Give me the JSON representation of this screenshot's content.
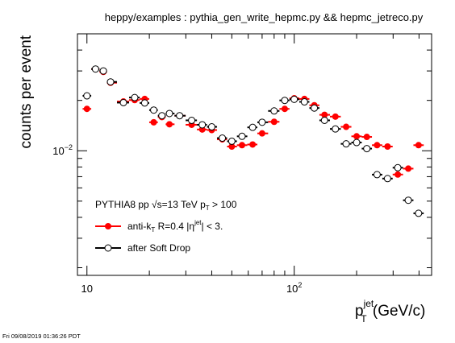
{
  "chart_data": {
    "type": "scatter",
    "title": "heppy/examples : pythia_gen_write_hepmc.py && hepmc_jetreco.py",
    "ylabel": "counts per event",
    "xlabel_main": "p",
    "xlabel_sup": "jet",
    "xlabel_sub": "T",
    "xlabel_units": " (GeV/c)",
    "xscale": "log",
    "yscale": "log",
    "xlim": [
      9,
      460
    ],
    "ylim": [
      0.0018,
      0.05
    ],
    "x_ticks": [
      {
        "value": 10,
        "base": "10",
        "exp": ""
      },
      {
        "value": 100,
        "base": "10",
        "exp": "2"
      }
    ],
    "y_ticks": [
      {
        "value": 0.01,
        "base": "10",
        "exp": "−2"
      }
    ],
    "grid": false,
    "legend": {
      "placement": "bottom-left",
      "header_pre": "PYTHIA8 pp √s=13 TeV ",
      "header_mid": "p",
      "header_sub": "T",
      "header_post": " > 100",
      "entry1_pre": "anti-k",
      "entry1_sub": "T",
      "entry1_mid": " R=0.4 |η",
      "entry1_sup": "jet",
      "entry1_post": "| < 3.",
      "entry2": "after Soft Drop"
    },
    "series": [
      {
        "style": "filled",
        "color": "#ff0000",
        "points": [
          [
            10,
            0.0178
          ],
          [
            11,
            0.0308
          ],
          [
            12,
            0.0296
          ],
          [
            13,
            0.0255
          ],
          [
            15,
            0.0197
          ],
          [
            17,
            0.0201
          ],
          [
            19,
            0.0204
          ],
          [
            21,
            0.0148
          ],
          [
            23,
            0.0159
          ],
          [
            25,
            0.0144
          ],
          [
            28,
            0.0162
          ],
          [
            32,
            0.0143
          ],
          [
            36,
            0.0134
          ],
          [
            40,
            0.0133
          ],
          [
            45,
            0.0117
          ],
          [
            50,
            0.0106
          ],
          [
            56,
            0.0108
          ],
          [
            63,
            0.0109
          ],
          [
            70,
            0.0127
          ],
          [
            80,
            0.0149
          ],
          [
            90,
            0.0178
          ],
          [
            100,
            0.0206
          ],
          [
            112,
            0.0204
          ],
          [
            125,
            0.0187
          ],
          [
            140,
            0.0164
          ],
          [
            158,
            0.016
          ],
          [
            178,
            0.0139
          ],
          [
            200,
            0.0122
          ],
          [
            224,
            0.0121
          ],
          [
            251,
            0.0108
          ],
          [
            282,
            0.0106
          ],
          [
            316,
            0.00721
          ],
          [
            355,
            0.00782
          ],
          [
            398,
            0.0108
          ]
        ]
      },
      {
        "style": "open",
        "color": "#000000",
        "points": [
          [
            10,
            0.0213
          ],
          [
            11,
            0.0308
          ],
          [
            12,
            0.03
          ],
          [
            13,
            0.0258
          ],
          [
            15,
            0.0194
          ],
          [
            17,
            0.0208
          ],
          [
            19,
            0.0193
          ],
          [
            21,
            0.0175
          ],
          [
            23,
            0.0162
          ],
          [
            25,
            0.0167
          ],
          [
            28,
            0.0162
          ],
          [
            32,
            0.0152
          ],
          [
            36,
            0.0143
          ],
          [
            40,
            0.0139
          ],
          [
            45,
            0.0119
          ],
          [
            50,
            0.0114
          ],
          [
            56,
            0.0122
          ],
          [
            63,
            0.0138
          ],
          [
            70,
            0.0148
          ],
          [
            80,
            0.0173
          ],
          [
            90,
            0.02
          ],
          [
            100,
            0.0203
          ],
          [
            112,
            0.0196
          ],
          [
            125,
            0.018
          ],
          [
            140,
            0.0152
          ],
          [
            158,
            0.0135
          ],
          [
            178,
            0.011
          ],
          [
            200,
            0.0112
          ],
          [
            224,
            0.0103
          ],
          [
            251,
            0.0072
          ],
          [
            282,
            0.00682
          ],
          [
            316,
            0.00792
          ],
          [
            355,
            0.00506
          ],
          [
            398,
            0.00423
          ]
        ]
      }
    ]
  },
  "footer": {
    "timestamp": "Fri 09/08/2019 01:36:26 PDT"
  }
}
